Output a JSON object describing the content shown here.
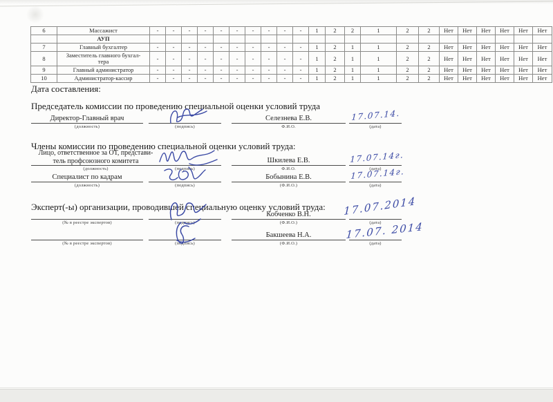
{
  "doc": {
    "date_label": "Дата составления:",
    "chair_header": "Председатель комиссии по проведению специальной оценки условий труда",
    "members_header": "Члены комиссии по проведению специальной оценки условий труда:",
    "experts_header": "Эксперт(-ы) организации, проводившей специальную оценку условий труда:"
  },
  "table": {
    "dash": "-",
    "dash_count": 10,
    "no_value": "Нет",
    "no_count": 6,
    "rows": [
      {
        "num": "6",
        "name": "Массажист",
        "type": "data",
        "values": [
          "1",
          "2",
          "2",
          "1",
          "2",
          "2"
        ]
      },
      {
        "num": "",
        "name": "АУП",
        "type": "group",
        "values": []
      },
      {
        "num": "7",
        "name": "Главный бухгалтер",
        "type": "data",
        "values": [
          "1",
          "2",
          "1",
          "1",
          "2",
          "2"
        ]
      },
      {
        "num": "8",
        "name": "Заместитель главного бухгал-\nтера",
        "type": "data",
        "values": [
          "1",
          "2",
          "1",
          "1",
          "2",
          "2"
        ]
      },
      {
        "num": "9",
        "name": "Главный администратор",
        "type": "data",
        "values": [
          "1",
          "2",
          "1",
          "1",
          "2",
          "2"
        ]
      },
      {
        "num": "10",
        "name": "Администратор-кассир",
        "type": "data",
        "values": [
          "1",
          "2",
          "1",
          "1",
          "2",
          "2"
        ]
      }
    ]
  },
  "signatures": [
    {
      "role": "Директор-Главный врач",
      "role_caption": "(должность)",
      "sign_caption": "(подпись)",
      "name": "Селезнева Е.В.",
      "name_caption": "Ф.И.О.",
      "date": "17.07.14.",
      "date_caption": "(дата)"
    },
    {
      "role": "Лицо, ответственное за ОТ, представи-\nтель профсоюзного комитета",
      "role_caption": "(должность)",
      "sign_caption": "(подпись)",
      "name": "Шкилева Е.В.",
      "name_caption": "Ф.И.О.",
      "date": "17.07.14г.",
      "date_caption": "(дата)"
    },
    {
      "role": "Специалист по кадрам",
      "role_caption": "(должность)",
      "sign_caption": "(подпись)",
      "name": "Бобынина Е.В.",
      "name_caption": "(Ф.И.О.)",
      "date": "17.07.14г.",
      "date_caption": "(дата)"
    },
    {
      "role": "",
      "role_caption": "(№ в реестре экспертов)",
      "sign_caption": "(подпись)",
      "name": "Кобченко В.Н.",
      "name_caption": "(Ф.И.О.)",
      "date": "17.07.2014",
      "date_caption": "(дата)"
    },
    {
      "role": "",
      "role_caption": "(№ в реестре экспертов)",
      "sign_caption": "(подпись)",
      "name": "Бакшеева Н.А.",
      "name_caption": "(Ф.И.О.)",
      "date": "17.07. 2014",
      "date_caption": "(дата)"
    }
  ],
  "ink_color": "#3a49a4"
}
